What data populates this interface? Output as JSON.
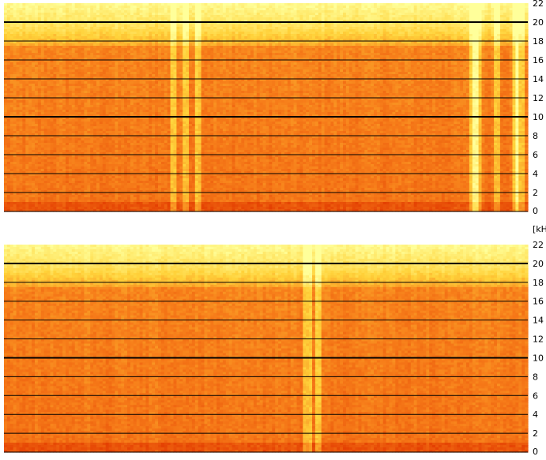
{
  "chart_data": {
    "type": "heatmap",
    "unit_label": "[kHz]",
    "colors": {
      "low": "#e23a00",
      "mid": "#f77e1a",
      "high": "#ffd23a",
      "peak": "#ffff9a",
      "gridline": "#000000",
      "background": "#ffffff"
    },
    "grid": true,
    "panels": [
      {
        "channel": "upper",
        "ylim": [
          0,
          22
        ],
        "yticks": [
          0,
          2,
          4,
          6,
          8,
          10,
          12,
          14,
          16,
          18,
          20,
          22
        ],
        "ytick_labels": [
          "0",
          "2",
          "4",
          "6",
          "8",
          "10",
          "12",
          "14",
          "16",
          "18",
          "20",
          "22"
        ],
        "bright_time_fractions": [
          0.325,
          0.345,
          0.37,
          0.895,
          0.9,
          0.905,
          0.94,
          0.975,
          0.985
        ]
      },
      {
        "channel": "lower",
        "ylim": [
          0,
          22
        ],
        "yticks": [
          0,
          2,
          4,
          6,
          8,
          10,
          12,
          14,
          16,
          18,
          20,
          22
        ],
        "ytick_labels": [
          "0",
          "2",
          "4",
          "6",
          "8",
          "10",
          "12",
          "14",
          "16",
          "18",
          "20",
          "22"
        ],
        "bright_time_fractions": [
          0.58,
          0.6
        ]
      }
    ]
  }
}
